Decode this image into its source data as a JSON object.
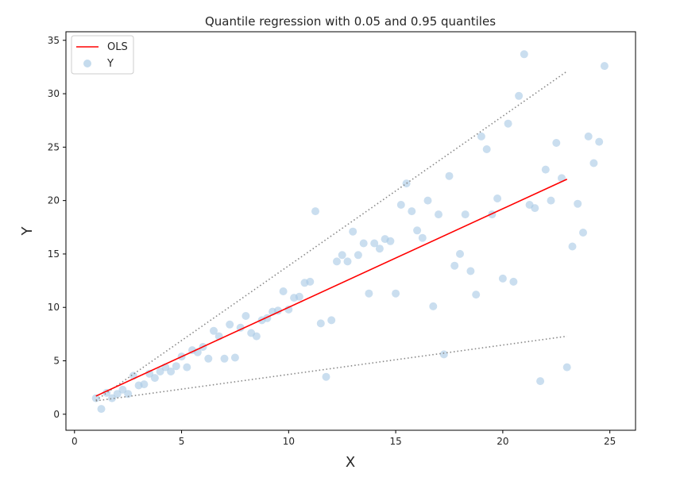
{
  "chart_data": {
    "type": "scatter",
    "title": "Quantile regression with 0.05 and 0.95 quantiles",
    "xlabel": "X",
    "ylabel": "Y",
    "xlim": [
      -0.4,
      26.2
    ],
    "ylim": [
      -1.5,
      35.8
    ],
    "xticks": [
      0,
      5,
      10,
      15,
      20,
      25
    ],
    "yticks": [
      0,
      5,
      10,
      15,
      20,
      25,
      30,
      35
    ],
    "grid": false,
    "legend_position": "top-left",
    "legend": [
      {
        "label": "OLS",
        "kind": "line",
        "color": "#ff0000"
      },
      {
        "label": "Y",
        "kind": "marker",
        "color": "#a6c8e4"
      }
    ],
    "series": [
      {
        "name": "Y",
        "kind": "scatter",
        "color": "#a6c8e4",
        "points": [
          [
            1.0,
            1.5
          ],
          [
            1.25,
            0.5
          ],
          [
            1.5,
            2.0
          ],
          [
            1.75,
            1.5
          ],
          [
            2.0,
            1.9
          ],
          [
            2.25,
            2.3
          ],
          [
            2.5,
            1.9
          ],
          [
            2.75,
            3.6
          ],
          [
            3.0,
            2.7
          ],
          [
            3.25,
            2.8
          ],
          [
            3.5,
            3.8
          ],
          [
            3.75,
            3.4
          ],
          [
            4.0,
            4.0
          ],
          [
            4.25,
            4.4
          ],
          [
            4.5,
            4.0
          ],
          [
            4.75,
            4.5
          ],
          [
            5.0,
            5.4
          ],
          [
            5.25,
            4.4
          ],
          [
            5.5,
            6.0
          ],
          [
            5.75,
            5.8
          ],
          [
            6.0,
            6.3
          ],
          [
            6.25,
            5.2
          ],
          [
            6.5,
            7.8
          ],
          [
            6.75,
            7.3
          ],
          [
            7.0,
            5.2
          ],
          [
            7.25,
            8.4
          ],
          [
            7.5,
            5.3
          ],
          [
            7.75,
            8.1
          ],
          [
            8.0,
            9.2
          ],
          [
            8.25,
            7.6
          ],
          [
            8.5,
            7.3
          ],
          [
            8.75,
            8.8
          ],
          [
            9.0,
            9.0
          ],
          [
            9.25,
            9.6
          ],
          [
            9.5,
            9.7
          ],
          [
            9.75,
            11.5
          ],
          [
            10.0,
            9.8
          ],
          [
            10.25,
            10.9
          ],
          [
            10.5,
            11.0
          ],
          [
            10.75,
            12.3
          ],
          [
            11.0,
            12.4
          ],
          [
            11.25,
            19.0
          ],
          [
            11.5,
            8.5
          ],
          [
            11.75,
            3.5
          ],
          [
            12.0,
            8.8
          ],
          [
            12.25,
            14.3
          ],
          [
            12.5,
            14.9
          ],
          [
            12.75,
            14.3
          ],
          [
            13.0,
            17.1
          ],
          [
            13.25,
            14.9
          ],
          [
            13.5,
            16.0
          ],
          [
            13.75,
            11.3
          ],
          [
            14.0,
            16.0
          ],
          [
            14.25,
            15.5
          ],
          [
            14.5,
            16.4
          ],
          [
            14.75,
            16.2
          ],
          [
            15.0,
            11.3
          ],
          [
            15.25,
            19.6
          ],
          [
            15.5,
            21.6
          ],
          [
            15.75,
            19.0
          ],
          [
            16.0,
            17.2
          ],
          [
            16.25,
            16.5
          ],
          [
            16.5,
            20.0
          ],
          [
            16.75,
            10.1
          ],
          [
            17.0,
            18.7
          ],
          [
            17.25,
            5.6
          ],
          [
            17.5,
            22.3
          ],
          [
            17.75,
            13.9
          ],
          [
            18.0,
            15.0
          ],
          [
            18.25,
            18.7
          ],
          [
            18.5,
            13.4
          ],
          [
            18.75,
            11.2
          ],
          [
            19.0,
            26.0
          ],
          [
            19.25,
            24.8
          ],
          [
            19.5,
            18.7
          ],
          [
            19.75,
            20.2
          ],
          [
            20.0,
            12.7
          ],
          [
            20.25,
            27.2
          ],
          [
            20.5,
            12.4
          ],
          [
            20.75,
            29.8
          ],
          [
            21.0,
            33.7
          ],
          [
            21.25,
            19.6
          ],
          [
            21.5,
            19.3
          ],
          [
            21.75,
            3.1
          ],
          [
            22.0,
            22.9
          ],
          [
            22.25,
            20.0
          ],
          [
            22.5,
            25.4
          ],
          [
            22.75,
            22.1
          ],
          [
            23.0,
            4.4
          ],
          [
            23.25,
            15.7
          ],
          [
            23.5,
            19.7
          ],
          [
            23.75,
            17.0
          ],
          [
            24.0,
            26.0
          ],
          [
            24.25,
            23.5
          ],
          [
            24.5,
            25.5
          ],
          [
            24.75,
            32.6
          ]
        ]
      },
      {
        "name": "OLS",
        "kind": "line",
        "color": "#ff0000",
        "points": [
          [
            1.0,
            1.7
          ],
          [
            23.0,
            22.0
          ]
        ]
      },
      {
        "kind": "dotted-line",
        "color": "#888888",
        "points": [
          [
            1.0,
            1.3
          ],
          [
            23.0,
            32.1
          ]
        ]
      },
      {
        "kind": "dotted-line",
        "color": "#888888",
        "points": [
          [
            1.0,
            1.25
          ],
          [
            23.0,
            7.3
          ]
        ]
      }
    ]
  }
}
